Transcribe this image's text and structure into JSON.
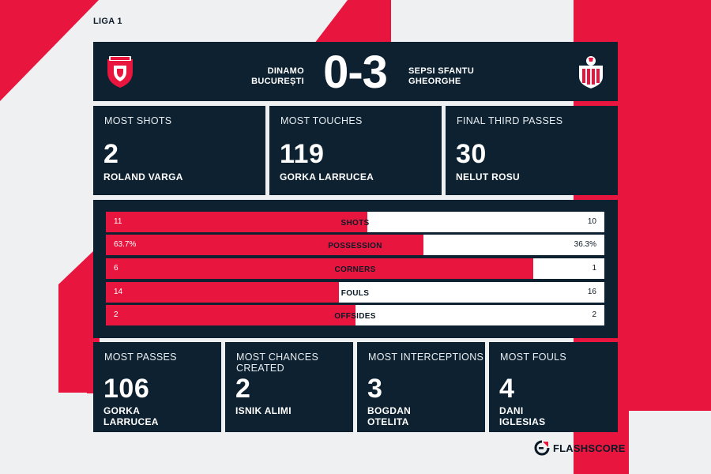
{
  "league": "LIGA 1",
  "colors": {
    "accent": "#e8163f",
    "panel": "#0d2130",
    "background": "#eef0f2"
  },
  "match": {
    "home": {
      "line1": "DINAMO",
      "line2": "BUCUREȘTI",
      "crest": "dinamo-crest-icon"
    },
    "away": {
      "line1": "SEPSI SFANTU",
      "line2": "GHEORGHE",
      "crest": "sepsi-crest-icon"
    },
    "score": "0-3"
  },
  "top_stats": [
    {
      "label": "MOST SHOTS",
      "value": "2",
      "player": [
        "ROLAND VARGA"
      ]
    },
    {
      "label": "MOST TOUCHES",
      "value": "119",
      "player": [
        "GORKA LARRUCEA"
      ]
    },
    {
      "label": "FINAL THIRD PASSES",
      "value": "30",
      "player": [
        "NELUT ROSU"
      ]
    }
  ],
  "comparison": [
    {
      "name": "SHOTS",
      "left": "11",
      "right": "10",
      "left_share": 0.524
    },
    {
      "name": "POSSESSION",
      "left": "63.7%",
      "right": "36.3%",
      "left_share": 0.637
    },
    {
      "name": "CORNERS",
      "left": "6",
      "right": "1",
      "left_share": 0.857
    },
    {
      "name": "FOULS",
      "left": "14",
      "right": "16",
      "left_share": 0.467
    },
    {
      "name": "OFFSIDES",
      "left": "2",
      "right": "2",
      "left_share": 0.5
    }
  ],
  "bottom_stats": [
    {
      "label": [
        "MOST PASSES"
      ],
      "value": "106",
      "player": [
        "GORKA",
        "LARRUCEA"
      ]
    },
    {
      "label": [
        "MOST CHANCES",
        "CREATED"
      ],
      "value": "2",
      "player": [
        "ISNIK ALIMI"
      ]
    },
    {
      "label": [
        "MOST INTERCEPTIONS"
      ],
      "value": "3",
      "player": [
        "BOGDAN",
        "OTELITA"
      ]
    },
    {
      "label": [
        "MOST FOULS"
      ],
      "value": "4",
      "player": [
        "DANI",
        "IGLESIAS"
      ]
    }
  ],
  "brand": {
    "name": "FLASHSCORE",
    "icon": "flashscore-logo-icon"
  }
}
